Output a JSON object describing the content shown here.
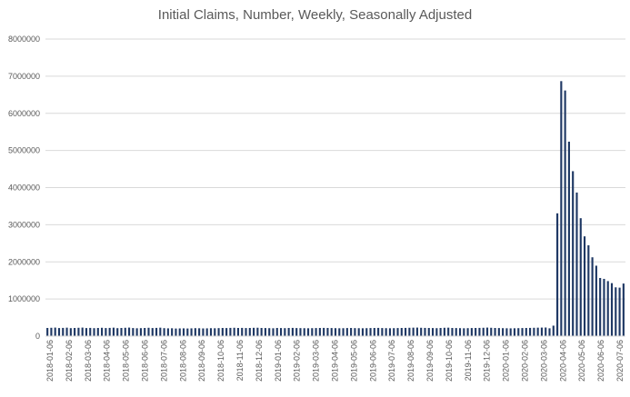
{
  "chart_data": {
    "type": "bar",
    "title": "Initial Claims, Number, Weekly, Seasonally Adjusted",
    "xlabel": "",
    "ylabel": "",
    "ylim": [
      0,
      8000000
    ],
    "yticks": [
      "0",
      "1000000",
      "2000000",
      "3000000",
      "4000000",
      "5000000",
      "6000000",
      "7000000",
      "8000000"
    ],
    "xticks": [
      "2018-01-06",
      "2018-02-06",
      "2018-03-06",
      "2018-04-06",
      "2018-05-06",
      "2018-06-06",
      "2018-07-06",
      "2018-08-06",
      "2018-09-06",
      "2018-10-06",
      "2018-11-06",
      "2018-12-06",
      "2019-01-06",
      "2019-02-06",
      "2019-03-06",
      "2019-04-06",
      "2019-05-06",
      "2019-06-06",
      "2019-07-06",
      "2019-08-06",
      "2019-09-06",
      "2019-10-06",
      "2019-11-06",
      "2019-12-06",
      "2020-01-06",
      "2020-02-06",
      "2020-03-06",
      "2020-04-06",
      "2020-05-06",
      "2020-06-06",
      "2020-07-06"
    ],
    "grid": true,
    "bar_color": "#1f3864",
    "series": [
      {
        "values": [
          220000,
          225000,
          230000,
          218000,
          222000,
          228000,
          215000,
          220000,
          225000,
          230000,
          218000,
          222000,
          215000,
          220000,
          225000,
          218000,
          222000,
          228000,
          215000,
          220000,
          225000,
          230000,
          218000,
          212000,
          215000,
          220000,
          225000,
          218000,
          222000,
          228000,
          215000,
          210000,
          212000,
          205000,
          208000,
          210000,
          206000,
          210000,
          215000,
          212000,
          208000,
          210000,
          214000,
          212000,
          216000,
          220000,
          218000,
          222000,
          225000,
          220000,
          222000,
          218000,
          220000,
          224000,
          226000,
          220000,
          218000,
          215000,
          212000,
          220000,
          218000,
          215000,
          220000,
          222000,
          218000,
          216000,
          214000,
          212000,
          215000,
          218000,
          220000,
          222000,
          220000,
          218000,
          215000,
          212000,
          214000,
          218000,
          220000,
          216000,
          214000,
          212000,
          215000,
          218000,
          220000,
          222000,
          218000,
          215000,
          212000,
          215000,
          218000,
          220000,
          222000,
          225000,
          228000,
          230000,
          225000,
          222000,
          220000,
          218000,
          215000,
          220000,
          225000,
          228000,
          220000,
          218000,
          215000,
          212000,
          215000,
          218000,
          220000,
          222000,
          225000,
          230000,
          225000,
          220000,
          218000,
          215000,
          212000,
          210000,
          212000,
          215000,
          218000,
          220000,
          222000,
          225000,
          228000,
          230000,
          232000,
          211000,
          282000,
          3307000,
          6867000,
          6615000,
          5237000,
          4442000,
          3867000,
          3176000,
          2687000,
          2446000,
          2123000,
          1897000,
          1566000,
          1542000,
          1482000,
          1427000,
          1314000,
          1306000,
          1416000
        ]
      }
    ]
  }
}
